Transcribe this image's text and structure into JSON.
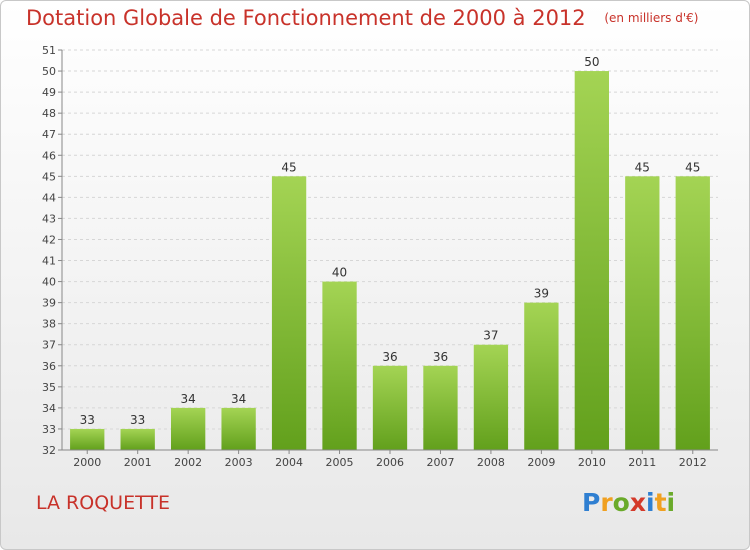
{
  "header": {
    "title": "Dotation Globale de Fonctionnement de 2000 à 2012",
    "subtitle": "(en milliers d'€)"
  },
  "footer": {
    "commune": "LA ROQUETTE",
    "brand": "Proxiti"
  },
  "colors": {
    "bar_light": "#a4d454",
    "bar_dark": "#62a01c",
    "title": "#c8322a",
    "grid": "#d6d6d6"
  },
  "chart_data": {
    "type": "bar",
    "categories": [
      "2000",
      "2001",
      "2002",
      "2003",
      "2004",
      "2005",
      "2006",
      "2007",
      "2008",
      "2009",
      "2010",
      "2011",
      "2012"
    ],
    "values": [
      33,
      33,
      34,
      34,
      45,
      40,
      36,
      36,
      37,
      39,
      50,
      45,
      45
    ],
    "title": "Dotation Globale de Fonctionnement de 2000 à 2012",
    "subtitle": "(en milliers d'€)",
    "xlabel": "",
    "ylabel": "",
    "ylim": [
      32,
      51
    ],
    "yticks": [
      32,
      33,
      34,
      35,
      36,
      37,
      38,
      39,
      40,
      41,
      42,
      43,
      44,
      45,
      46,
      47,
      48,
      49,
      50,
      51
    ],
    "grid": true,
    "data_labels": true
  }
}
